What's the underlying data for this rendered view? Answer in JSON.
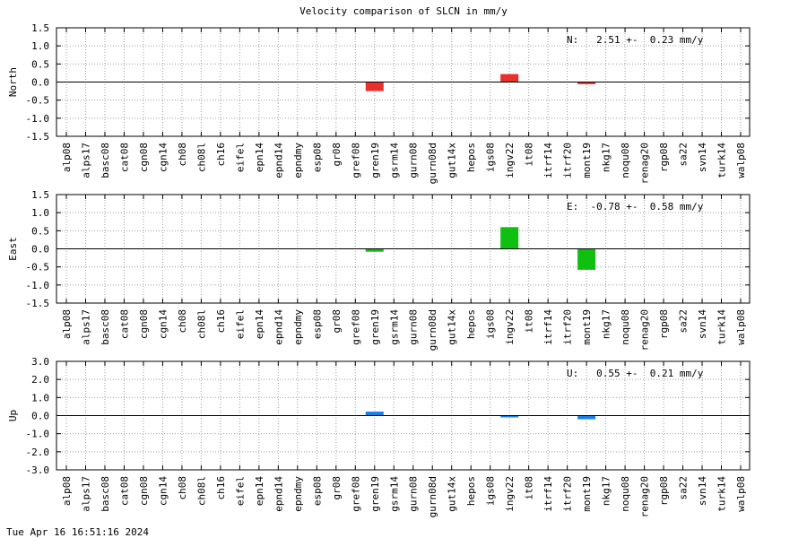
{
  "title": "Velocity comparison of SLCN in mm/y",
  "footer": "Tue Apr 16 16:51:16 2024",
  "chart_data": [
    {
      "type": "bar",
      "ylabel": "North",
      "ylim": [
        -1.5,
        1.5
      ],
      "yticks": [
        1.5,
        1.0,
        0.5,
        0.0,
        -0.5,
        -1.0,
        -1.5
      ],
      "ytick_labels": [
        "1.5",
        "1.0",
        "0.5",
        "0.0",
        "-0.5",
        "-1.0",
        "-1.5"
      ],
      "annotation": "N:   2.51 +-  0.23 mm/y",
      "color": "#e8302c",
      "grid": true,
      "categories": [
        "alp08",
        "alps17",
        "basc08",
        "cat08",
        "cgn08",
        "cgn14",
        "ch08",
        "ch08l",
        "ch16",
        "eifel",
        "epn14",
        "epnd14",
        "epndmy",
        "esp08",
        "gr08",
        "gref08",
        "gren19",
        "gsrm14",
        "gurn08",
        "gurn08d",
        "gut14x",
        "hepos",
        "igs08",
        "ingv22",
        "it08",
        "itrf14",
        "itrf20",
        "mont19",
        "nkg17",
        "noqu08",
        "renag20",
        "rgp08",
        "sa22",
        "svn14",
        "turk14",
        "walp08"
      ],
      "values": [
        0,
        0,
        0,
        0,
        0,
        0,
        0,
        0,
        0,
        0,
        0,
        0,
        0,
        0,
        0,
        0,
        -0.25,
        0,
        0,
        0,
        0,
        0,
        0,
        0.22,
        0,
        0,
        0,
        -0.06,
        0,
        0,
        0,
        0,
        0,
        0,
        0,
        0
      ]
    },
    {
      "type": "bar",
      "ylabel": "East",
      "ylim": [
        -1.5,
        1.5
      ],
      "yticks": [
        1.5,
        1.0,
        0.5,
        0.0,
        -0.5,
        -1.0,
        -1.5
      ],
      "ytick_labels": [
        "1.5",
        "1.0",
        "0.5",
        "0.0",
        "-0.5",
        "-1.0",
        "-1.5"
      ],
      "annotation": "E:  -0.78 +-  0.58 mm/y",
      "color": "#10c010",
      "grid": true,
      "categories": [
        "alp08",
        "alps17",
        "basc08",
        "cat08",
        "cgn08",
        "cgn14",
        "ch08",
        "ch08l",
        "ch16",
        "eifel",
        "epn14",
        "epnd14",
        "epndmy",
        "esp08",
        "gr08",
        "gref08",
        "gren19",
        "gsrm14",
        "gurn08",
        "gurn08d",
        "gut14x",
        "hepos",
        "igs08",
        "ingv22",
        "it08",
        "itrf14",
        "itrf20",
        "mont19",
        "nkg17",
        "noqu08",
        "renag20",
        "rgp08",
        "sa22",
        "svn14",
        "turk14",
        "walp08"
      ],
      "values": [
        0,
        0,
        0,
        0,
        0,
        0,
        0,
        0,
        0,
        0,
        0,
        0,
        0,
        0,
        0,
        0,
        -0.08,
        0,
        0,
        0,
        0,
        0,
        0,
        0.6,
        0,
        0,
        0,
        -0.58,
        0,
        0,
        0,
        0,
        0,
        0,
        0,
        0
      ]
    },
    {
      "type": "bar",
      "ylabel": "Up",
      "ylim": [
        -3.0,
        3.0
      ],
      "yticks": [
        3.0,
        2.0,
        1.0,
        0.0,
        -1.0,
        -2.0,
        -3.0
      ],
      "ytick_labels": [
        "3.0",
        "2.0",
        "1.0",
        "0.0",
        "-1.0",
        "-2.0",
        "-3.0"
      ],
      "annotation": "U:   0.55 +-  0.21 mm/y",
      "color": "#1a7fe8",
      "grid": true,
      "categories": [
        "alp08",
        "alps17",
        "basc08",
        "cat08",
        "cgn08",
        "cgn14",
        "ch08",
        "ch08l",
        "ch16",
        "eifel",
        "epn14",
        "epnd14",
        "epndmy",
        "esp08",
        "gr08",
        "gref08",
        "gren19",
        "gsrm14",
        "gurn08",
        "gurn08d",
        "gut14x",
        "hepos",
        "igs08",
        "ingv22",
        "it08",
        "itrf14",
        "itrf20",
        "mont19",
        "nkg17",
        "noqu08",
        "renag20",
        "rgp08",
        "sa22",
        "svn14",
        "turk14",
        "walp08"
      ],
      "values": [
        0,
        0,
        0,
        0,
        0,
        0,
        0,
        0,
        0,
        0,
        0,
        0,
        0,
        0,
        0,
        0,
        0.22,
        0,
        0,
        0,
        0,
        0,
        0,
        -0.05,
        0,
        0,
        0,
        -0.2,
        0,
        0,
        0,
        0,
        0,
        0,
        0,
        0
      ]
    }
  ]
}
